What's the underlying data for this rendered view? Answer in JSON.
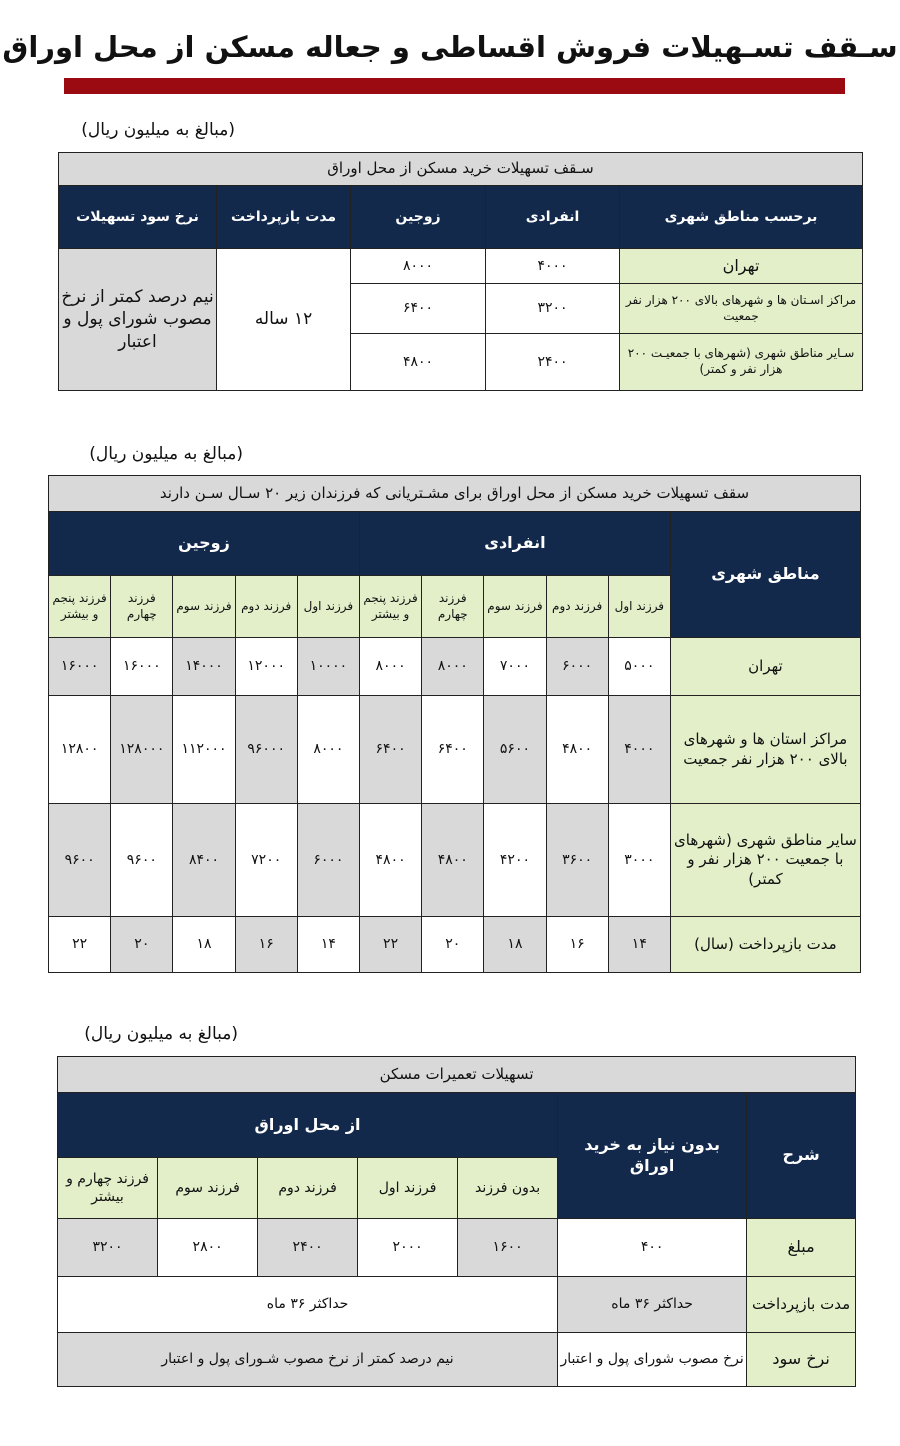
{
  "title": "سـقف تسـهیلات فروش اقساطی و جعاله مسکن از محل اوراق",
  "accent_color": "#9b0a10",
  "unit_note": "(مبالغ به میلیون ریال)",
  "table1": {
    "title": "سـقف تسهیلات خرید مسکن از محل اوراق",
    "headers": [
      "برحسب مناطق شهری",
      "انفرادی",
      "زوجین",
      "مدت بازپرداخت",
      "نرخ سود تسهیلات"
    ],
    "rows": [
      {
        "region": "تهران",
        "single": "۴۰۰۰",
        "couple": "۸۰۰۰"
      },
      {
        "region": "مراکز اسـتان ها و شهرهای بالای ۲۰۰ هزار نفر جمعیت",
        "single": "۳۲۰۰",
        "couple": "۶۴۰۰"
      },
      {
        "region": "سـایر مناطق شهری (شهرهای با جمعیـت ۲۰۰ هزار نفر و کمتر)",
        "single": "۲۴۰۰",
        "couple": "۴۸۰۰"
      }
    ],
    "duration": "۱۲ ساله",
    "rate": "نیم درصد کمتر از نرخ مصوب شورای پول و اعتبار"
  },
  "table2": {
    "title": "سقف تسهیلات خرید مسکن از محل اوراق برای مشـتریانی که فرزندان زیر ۲۰ سـال سـن دارند",
    "region_header": "مناطق شهری",
    "group_single": "انفرادی",
    "group_couple": "زوجین",
    "children": [
      "فرزند اول",
      "فرزند دوم",
      "فرزند سوم",
      "فرزند چهارم",
      "فرزند پنجم و بیشتر"
    ],
    "rows": [
      {
        "label": "تهران",
        "values": [
          "۵۰۰۰",
          "۶۰۰۰",
          "۷۰۰۰",
          "۸۰۰۰",
          "۸۰۰۰",
          "۱۰۰۰۰",
          "۱۲۰۰۰",
          "۱۴۰۰۰",
          "۱۶۰۰۰",
          "۱۶۰۰۰"
        ]
      },
      {
        "label": "مراکز استان ها و شهرهای بالای ۲۰۰ هزار نفر جمعیت",
        "values": [
          "۴۰۰۰",
          "۴۸۰۰",
          "۵۶۰۰",
          "۶۴۰۰",
          "۶۴۰۰",
          "۸۰۰۰",
          "۹۶۰۰۰",
          "۱۱۲۰۰۰",
          "۱۲۸۰۰۰",
          "۱۲۸۰۰"
        ]
      },
      {
        "label": "سایر مناطق شهری (شهرهای با جمعیت ۲۰۰ هزار نفر و کمتر)",
        "values": [
          "۳۰۰۰",
          "۳۶۰۰",
          "۴۲۰۰",
          "۴۸۰۰",
          "۴۸۰۰",
          "۶۰۰۰",
          "۷۲۰۰",
          "۸۴۰۰",
          "۹۶۰۰",
          "۹۶۰۰"
        ]
      },
      {
        "label": "مدت بازپرداخت (سال)",
        "values": [
          "۱۴",
          "۱۶",
          "۱۸",
          "۲۰",
          "۲۲",
          "۱۴",
          "۱۶",
          "۱۸",
          "۲۰",
          "۲۲"
        ]
      }
    ]
  },
  "table3": {
    "title": "تسهیلات تعمیرات مسکن",
    "desc_header": "شرح",
    "no_purchase_header": "بدون نیاز به خرید اوراق",
    "group_header": "از محل اوراق",
    "sub_headers": [
      "بدون فرزند",
      "فرزند اول",
      "فرزند دوم",
      "فرزند سوم",
      "فرزند چهارم و بیشتر"
    ],
    "amount_label": "مبلغ",
    "amount_no_purchase": "۴۰۰",
    "amounts": [
      "۱۶۰۰",
      "۲۰۰۰",
      "۲۴۰۰",
      "۲۸۰۰",
      "۳۲۰۰"
    ],
    "duration_label": "مدت بازپرداخت",
    "duration_no_purchase": "حداکثر ۳۶ ماه",
    "duration_bonds": "حداکثر ۳۶ ماه",
    "rate_label": "نرخ سود",
    "rate_no_purchase": "نرخ مصوب شورای پول و اعتبار",
    "rate_bonds": "نیم درصد کمتر از نرخ مصوب شـورای پول و اعتبار"
  }
}
